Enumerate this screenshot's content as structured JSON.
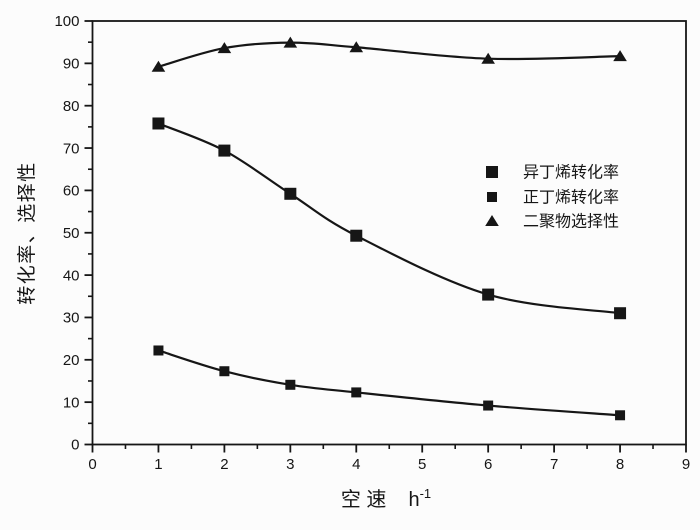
{
  "figure": {
    "background": "#fcfcfc",
    "ink": "#161616",
    "marker_color": "#111111"
  },
  "chart_data": {
    "type": "line",
    "title": "",
    "xlabel": "空 速",
    "x_unit_base": "h",
    "x_unit_sup": "-1",
    "ylabel": "转化率、选择性",
    "xlim": [
      0,
      9
    ],
    "ylim": [
      0,
      100
    ],
    "x_ticks": [
      "0",
      "1",
      "2",
      "3",
      "4",
      "5",
      "6",
      "7",
      "8",
      "9"
    ],
    "x_tick_values": [
      0,
      1,
      2,
      3,
      4,
      5,
      6,
      7,
      8,
      9
    ],
    "x_minor_tick_values": [
      0.5,
      1.5,
      2.5,
      3.5,
      4.5,
      5.5,
      6.5,
      7.5,
      8.5
    ],
    "y_ticks": [
      "0",
      "10",
      "20",
      "30",
      "40",
      "50",
      "60",
      "70",
      "80",
      "90",
      "100"
    ],
    "y_tick_values": [
      0,
      10,
      20,
      30,
      40,
      50,
      60,
      70,
      80,
      90,
      100
    ],
    "y_minor_tick_values": [
      5,
      15,
      25,
      35,
      45,
      55,
      65,
      75,
      85,
      95
    ],
    "grid": false,
    "legend_position": "inside-right-middle",
    "x": [
      1,
      2,
      3,
      4,
      6,
      8
    ],
    "series": [
      {
        "name": "异丁烯转化率",
        "marker": "square-large",
        "values": [
          75.8,
          69.4,
          59.2,
          49.3,
          35.4,
          31.0
        ]
      },
      {
        "name": "正丁烯转化率",
        "marker": "square-small",
        "values": [
          22.2,
          17.3,
          14.1,
          12.3,
          9.2,
          6.9
        ]
      },
      {
        "name": "二聚物选择性",
        "marker": "triangle",
        "values": [
          89.2,
          93.6,
          94.9,
          93.8,
          91.1,
          91.7
        ]
      }
    ]
  }
}
